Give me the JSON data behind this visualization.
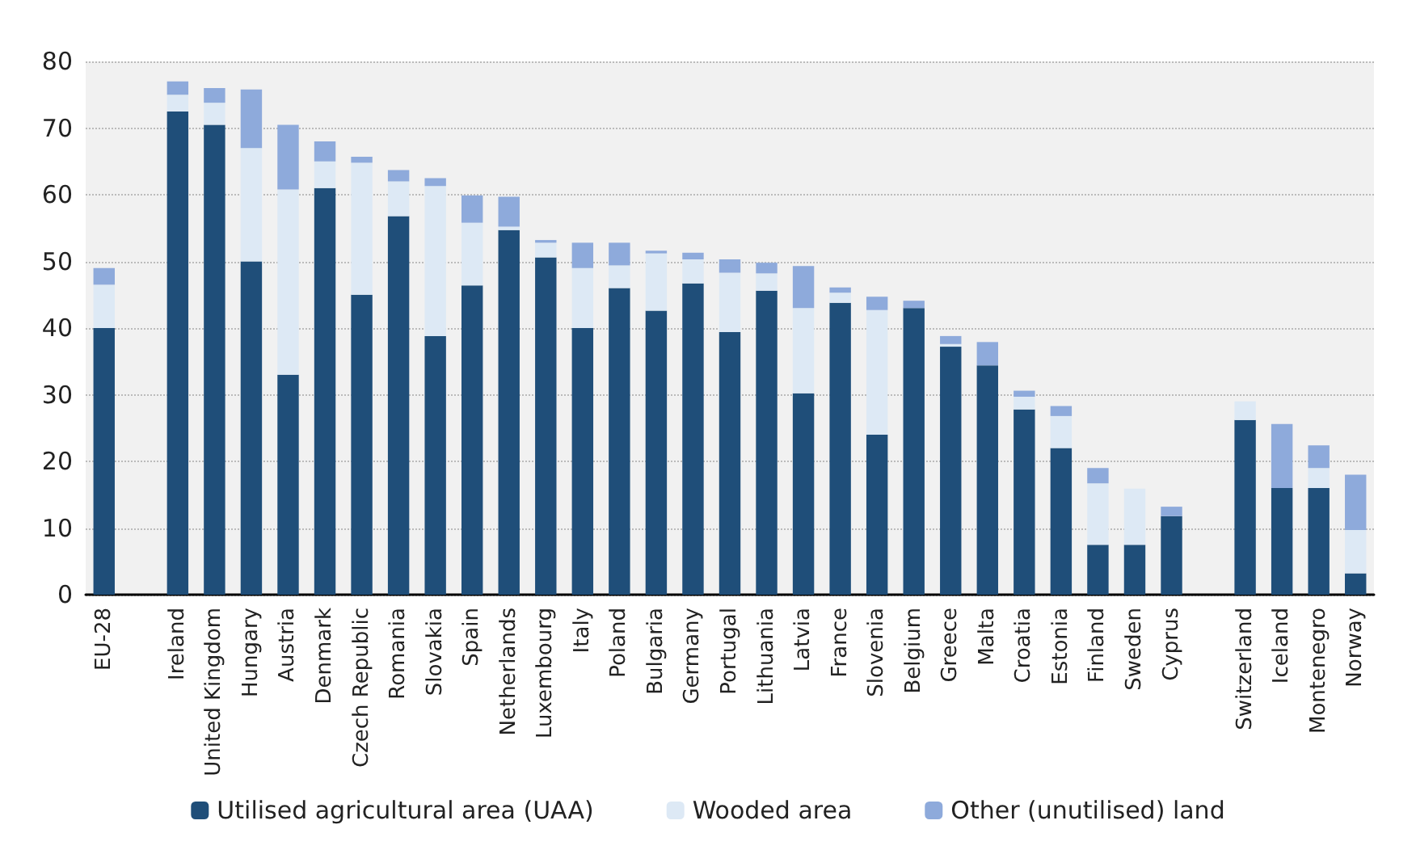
{
  "chart_data": {
    "type": "bar",
    "stacked": true,
    "categories": [
      "EU-28",
      null,
      "Ireland",
      "United Kingdom",
      "Hungary",
      "Austria",
      "Denmark",
      "Czech Republic",
      "Romania",
      "Slovakia",
      "Spain",
      "Netherlands",
      "Luxembourg",
      "Italy",
      "Poland",
      "Bulgaria",
      "Germany",
      "Portugal",
      "Lithuania",
      "Latvia",
      "France",
      "Slovenia",
      "Belgium",
      "Greece",
      "Malta",
      "Croatia",
      "Estonia",
      "Finland",
      "Sweden",
      "Cyprus",
      null,
      "Switzerland",
      "Iceland",
      "Montenegro",
      "Norway"
    ],
    "series": [
      {
        "name": "Utilised agricultural area (UAA)",
        "color": "#1f4e79",
        "values": [
          40,
          null,
          72.5,
          70.5,
          50,
          33,
          61,
          45,
          56.8,
          38.8,
          46.4,
          54.7,
          50.6,
          40,
          46,
          42.6,
          46.7,
          39.4,
          45.6,
          30.2,
          43.8,
          24,
          43,
          37.2,
          34.4,
          27.8,
          22,
          7.5,
          7.5,
          11.8,
          null,
          26.2,
          16,
          16,
          3.2
        ]
      },
      {
        "name": "Wooded area",
        "color": "#dde9f5",
        "values": [
          6.5,
          null,
          2.5,
          3.3,
          17,
          27.8,
          4,
          19.8,
          5.2,
          22.5,
          9.4,
          0.5,
          2.2,
          9,
          3.4,
          8.6,
          3.6,
          8.9,
          2.6,
          12.8,
          1.5,
          18.7,
          null,
          0.4,
          null,
          1.9,
          4.8,
          9.2,
          8.4,
          null,
          null,
          2.8,
          0,
          3,
          6.5
        ]
      },
      {
        "name": "Other (unutilised) land",
        "color": "#8eaadb",
        "values": [
          2.5,
          null,
          2,
          2.2,
          8.8,
          9.7,
          3,
          0.9,
          1.7,
          1.2,
          4.1,
          4.5,
          0.4,
          3.8,
          3.4,
          0.4,
          1,
          2,
          1.6,
          6.3,
          0.8,
          2,
          1.1,
          1.2,
          3.5,
          0.9,
          1.5,
          2.3,
          0,
          1.4,
          null,
          0,
          9.6,
          3.4,
          8.3
        ]
      }
    ],
    "ylim": [
      0,
      80
    ],
    "yticks": [
      0,
      10,
      20,
      30,
      40,
      50,
      60,
      70,
      80
    ],
    "grid": "y",
    "legend": "bottom"
  }
}
